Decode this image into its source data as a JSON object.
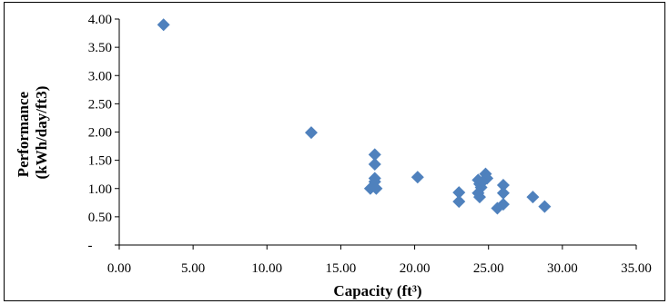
{
  "chart_data": {
    "type": "scatter",
    "title": "",
    "xlabel": "Capacity (ft³)",
    "ylabel": "Performance (kWh/day/ft³)",
    "ylabel_lines": [
      "Performance",
      "(kWh/day/ft3)"
    ],
    "xlim": [
      0,
      35
    ],
    "ylim": [
      0,
      4
    ],
    "x_ticks": [
      "0.00",
      "5.00",
      "10.00",
      "15.00",
      "20.00",
      "25.00",
      "30.00",
      "35.00"
    ],
    "y_ticks": [
      "-",
      "0.50",
      "1.00",
      "1.50",
      "2.00",
      "2.50",
      "3.00",
      "3.50",
      "4.00"
    ],
    "grid": false,
    "legend": "none",
    "marker": "diamond",
    "color": "#4F81BD",
    "points": [
      [
        3.0,
        3.9
      ],
      [
        13.0,
        1.99
      ],
      [
        17.3,
        1.6
      ],
      [
        17.3,
        1.43
      ],
      [
        17.3,
        1.18
      ],
      [
        17.3,
        1.12
      ],
      [
        17.0,
        1.0
      ],
      [
        17.4,
        1.0
      ],
      [
        20.2,
        1.2
      ],
      [
        23.0,
        0.93
      ],
      [
        23.0,
        0.77
      ],
      [
        24.3,
        1.15
      ],
      [
        24.4,
        1.08
      ],
      [
        24.5,
        1.02
      ],
      [
        24.3,
        0.92
      ],
      [
        24.4,
        0.85
      ],
      [
        24.8,
        1.26
      ],
      [
        24.9,
        1.18
      ],
      [
        24.6,
        1.12
      ],
      [
        26.0,
        1.06
      ],
      [
        26.0,
        0.92
      ],
      [
        26.0,
        0.72
      ],
      [
        25.6,
        0.65
      ],
      [
        28.0,
        0.85
      ],
      [
        28.8,
        0.68
      ]
    ]
  }
}
